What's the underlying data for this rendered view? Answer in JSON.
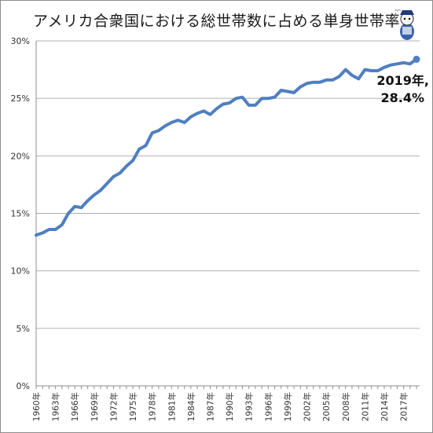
{
  "chart_data": {
    "type": "line",
    "title": "アメリカ合衆国における総世帯数に占める単身世帯率",
    "xlabel": "",
    "ylabel": "",
    "ylim": [
      0,
      30
    ],
    "yticks": [
      "0%",
      "5%",
      "10%",
      "15%",
      "20%",
      "25%",
      "30%"
    ],
    "xticks": [
      "1960年",
      "1963年",
      "1966年",
      "1969年",
      "1972年",
      "1975年",
      "1978年",
      "1981年",
      "1984年",
      "1987年",
      "1990年",
      "1993年",
      "1996年",
      "1999年",
      "2002年",
      "2005年",
      "2008年",
      "2011年",
      "2014年",
      "2017年"
    ],
    "grid": true,
    "series": [
      {
        "color": "#4f7fc0",
        "x": [
          1960,
          1961,
          1962,
          1963,
          1964,
          1965,
          1966,
          1967,
          1968,
          1969,
          1970,
          1971,
          1972,
          1973,
          1974,
          1975,
          1976,
          1977,
          1978,
          1979,
          1980,
          1981,
          1982,
          1983,
          1984,
          1985,
          1986,
          1987,
          1988,
          1989,
          1990,
          1991,
          1992,
          1993,
          1994,
          1995,
          1996,
          1997,
          1998,
          1999,
          2000,
          2001,
          2002,
          2003,
          2004,
          2005,
          2006,
          2007,
          2008,
          2009,
          2010,
          2011,
          2012,
          2013,
          2014,
          2015,
          2016,
          2017,
          2018,
          2019
        ],
        "values": [
          13.1,
          13.3,
          13.6,
          13.6,
          14.0,
          15.0,
          15.6,
          15.5,
          16.1,
          16.6,
          17.0,
          17.6,
          18.2,
          18.5,
          19.1,
          19.6,
          20.6,
          20.9,
          22.0,
          22.2,
          22.6,
          22.9,
          23.1,
          22.9,
          23.4,
          23.7,
          23.9,
          23.6,
          24.1,
          24.5,
          24.6,
          25.0,
          25.1,
          24.4,
          24.4,
          25.0,
          25.0,
          25.1,
          25.7,
          25.6,
          25.5,
          26.0,
          26.3,
          26.4,
          26.4,
          26.6,
          26.6,
          26.9,
          27.5,
          27.0,
          26.7,
          27.5,
          27.4,
          27.4,
          27.7,
          27.9,
          28.0,
          28.1,
          28.0,
          28.4
        ]
      }
    ],
    "annotation": {
      "line1": "2019年,",
      "line2": "28.4%",
      "x": 2019,
      "y": 28.4
    }
  }
}
